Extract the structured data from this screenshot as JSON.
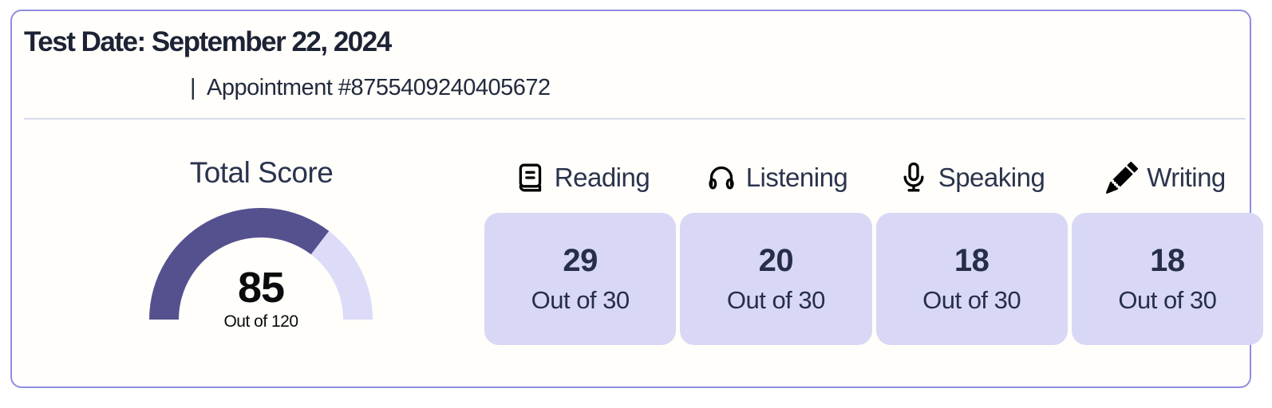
{
  "header": {
    "test_date": "Test Date: September 22, 2024",
    "separator": "|",
    "appointment": "Appointment #8755409240405672"
  },
  "total_score": {
    "title": "Total Score",
    "value": 85,
    "max": 120,
    "score_display": "85",
    "out_of_label": "Out of 120"
  },
  "sections": [
    {
      "label": "Reading",
      "icon": "book-icon",
      "score": "29",
      "out_of": "Out of 30"
    },
    {
      "label": "Listening",
      "icon": "headphones-icon",
      "score": "20",
      "out_of": "Out of 30"
    },
    {
      "label": "Speaking",
      "icon": "microphone-icon",
      "score": "18",
      "out_of": "Out of 30"
    },
    {
      "label": "Writing",
      "icon": "pencil-icon",
      "score": "18",
      "out_of": "Out of 30"
    }
  ],
  "chart_data": {
    "type": "gauge",
    "title": "Total Score",
    "value": 85,
    "max": 120,
    "sections": [
      {
        "name": "Reading",
        "value": 29,
        "max": 30
      },
      {
        "name": "Listening",
        "value": 20,
        "max": 30
      },
      {
        "name": "Speaking",
        "value": 18,
        "max": 30
      },
      {
        "name": "Writing",
        "value": 18,
        "max": 30
      }
    ]
  },
  "colors": {
    "gauge_fill": "#55518f",
    "gauge_track": "#dcdcf8",
    "score_card_bg": "#d8d8f6",
    "card_border": "#8f8de0",
    "text_dark": "#1d2335"
  }
}
